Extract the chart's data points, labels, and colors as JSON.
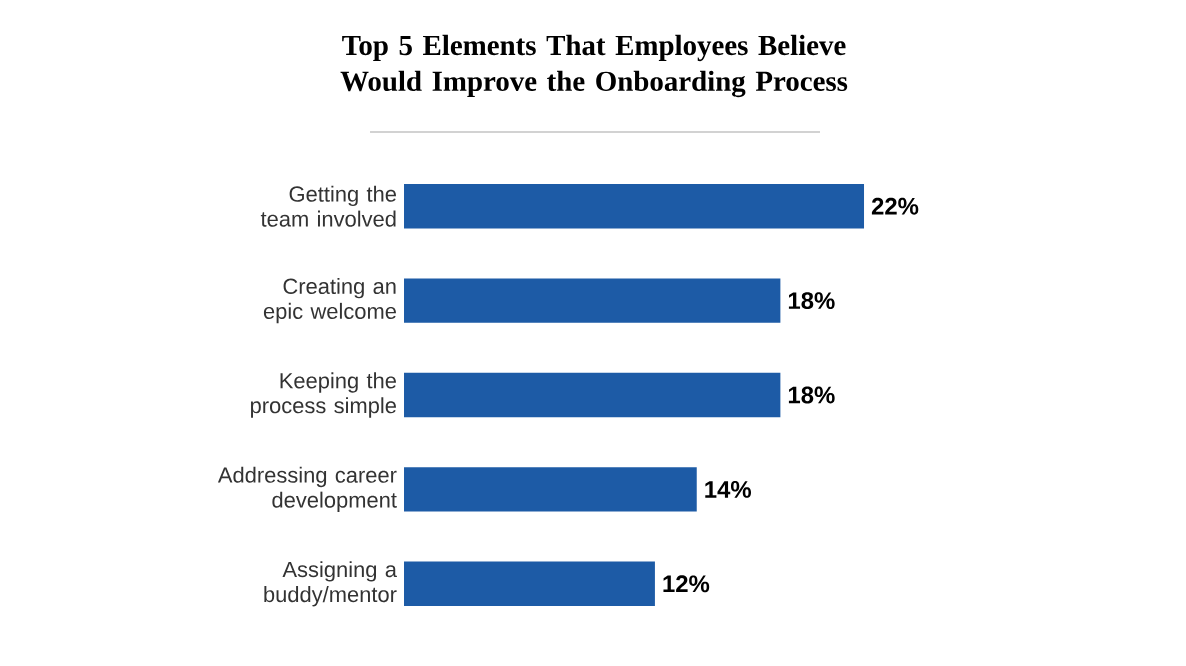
{
  "chart_data": {
    "type": "bar",
    "orientation": "horizontal",
    "title": "Top 5 Elements That Employees Believe Would Improve the Onboarding Process",
    "categories": [
      "Getting the team involved",
      "Creating an epic welcome",
      "Keeping the process simple",
      "Addressing career development",
      "Assigning a buddy/mentor"
    ],
    "values": [
      22,
      18,
      18,
      14,
      12
    ],
    "color": "#1d5ba6",
    "value_labels": [
      "22%",
      "18%",
      "18%",
      "14%",
      "12%"
    ]
  }
}
